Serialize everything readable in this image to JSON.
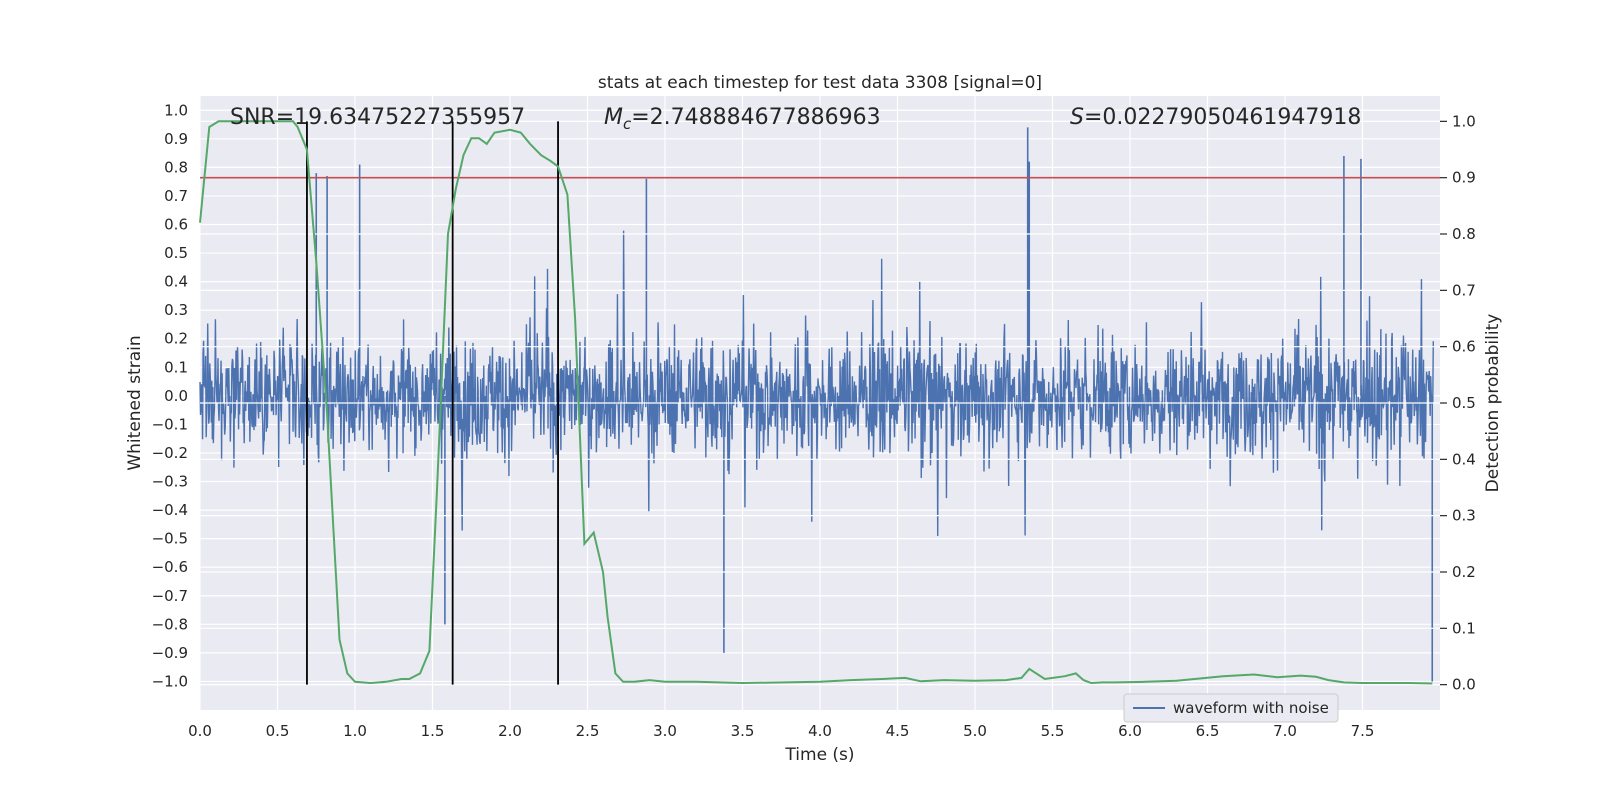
{
  "chart_data": {
    "type": "line",
    "title": "stats at each timestep for test data 3308 [signal=0]",
    "xlabel": "Time (s)",
    "ylabel": "Whitened strain",
    "y2label": "Detection probability",
    "xlim": [
      0.0,
      8.0
    ],
    "ylim": [
      -1.1,
      1.05
    ],
    "y2lim": [
      -0.045,
      1.045
    ],
    "grid": true,
    "x_ticks": [
      "0.0",
      "0.5",
      "1.0",
      "1.5",
      "2.0",
      "2.5",
      "3.0",
      "3.5",
      "4.0",
      "4.5",
      "5.0",
      "5.5",
      "6.0",
      "6.5",
      "7.0",
      "7.5"
    ],
    "y_ticks": [
      "1.0",
      "0.9",
      "0.8",
      "0.7",
      "0.6",
      "0.5",
      "0.4",
      "0.3",
      "0.2",
      "0.1",
      "0.0",
      "-0.1",
      "-0.2",
      "-0.3",
      "-0.4",
      "-0.5",
      "-0.6",
      "-0.7",
      "-0.8",
      "-0.9",
      "-1.0"
    ],
    "y2_ticks": [
      "1.0",
      "0.9",
      "0.8",
      "0.7",
      "0.6",
      "0.5",
      "0.4",
      "0.3",
      "0.2",
      "0.1",
      "0.0"
    ],
    "annotations": {
      "snr": "SNR=19.63475227355957",
      "mc_symbol": "M",
      "mc_sub": "c",
      "mc_value": "=2.748884677886963",
      "s_symbol": "S",
      "s_value": "=0.02279050461947918"
    },
    "legend": {
      "label": "waveform with noise",
      "position": "lower-right"
    },
    "colors": {
      "waveform": "#4c72b0",
      "probability": "#55a868",
      "threshold": "#c44e52",
      "markers": "#000000",
      "background": "#eaeaf2",
      "grid": "#ffffff"
    },
    "threshold_y2": 0.9,
    "vertical_markers_x": [
      0.69,
      1.63,
      2.31
    ],
    "waveform_envelope": {
      "sample_rate_note": "dense noise, typical |strain| ~0.3, peaks ~0.5-0.9",
      "spikes": [
        {
          "x": 1.03,
          "y": 0.81
        },
        {
          "x": 0.82,
          "y": 0.77
        },
        {
          "x": 2.88,
          "y": 0.76
        },
        {
          "x": 5.34,
          "y": 0.94
        },
        {
          "x": 5.35,
          "y": 0.82
        },
        {
          "x": 7.38,
          "y": 0.84
        },
        {
          "x": 7.49,
          "y": 0.83
        },
        {
          "x": 1.58,
          "y": -0.8
        },
        {
          "x": 3.38,
          "y": -0.9
        },
        {
          "x": 7.95,
          "y": -1.0
        },
        {
          "x": 0.75,
          "y": 0.78
        }
      ]
    },
    "series": [
      {
        "name": "waveform with noise",
        "axis": "left"
      },
      {
        "axis": "right",
        "x": [
          0.0,
          0.06,
          0.12,
          0.2,
          0.3,
          0.4,
          0.5,
          0.6,
          0.63,
          0.69,
          0.75,
          0.82,
          0.9,
          0.95,
          1.0,
          1.1,
          1.2,
          1.3,
          1.35,
          1.42,
          1.48,
          1.53,
          1.6,
          1.65,
          1.7,
          1.75,
          1.8,
          1.85,
          1.9,
          2.0,
          2.07,
          2.13,
          2.2,
          2.26,
          2.31,
          2.37,
          2.42,
          2.48,
          2.54,
          2.6,
          2.63,
          2.68,
          2.73,
          2.8,
          2.9,
          3.0,
          3.2,
          3.5,
          4.0,
          4.2,
          4.4,
          4.55,
          4.65,
          4.8,
          5.0,
          5.2,
          5.3,
          5.35,
          5.45,
          5.58,
          5.65,
          5.7,
          5.75,
          5.82,
          5.9,
          6.1,
          6.3,
          6.6,
          6.8,
          6.95,
          7.1,
          7.2,
          7.28,
          7.38,
          7.5,
          7.8,
          7.95
        ],
        "values": [
          0.82,
          0.99,
          1.0,
          1.0,
          1.0,
          1.0,
          1.0,
          1.0,
          0.99,
          0.95,
          0.75,
          0.48,
          0.08,
          0.02,
          0.005,
          0.003,
          0.005,
          0.01,
          0.01,
          0.02,
          0.06,
          0.35,
          0.8,
          0.88,
          0.94,
          0.97,
          0.97,
          0.96,
          0.98,
          0.985,
          0.98,
          0.96,
          0.94,
          0.93,
          0.92,
          0.87,
          0.65,
          0.25,
          0.27,
          0.2,
          0.12,
          0.02,
          0.005,
          0.005,
          0.008,
          0.005,
          0.005,
          0.003,
          0.005,
          0.008,
          0.01,
          0.012,
          0.006,
          0.008,
          0.007,
          0.008,
          0.012,
          0.028,
          0.01,
          0.015,
          0.02,
          0.008,
          0.003,
          0.004,
          0.004,
          0.005,
          0.007,
          0.015,
          0.018,
          0.013,
          0.016,
          0.014,
          0.008,
          0.004,
          0.003,
          0.003,
          0.002
        ]
      }
    ]
  }
}
